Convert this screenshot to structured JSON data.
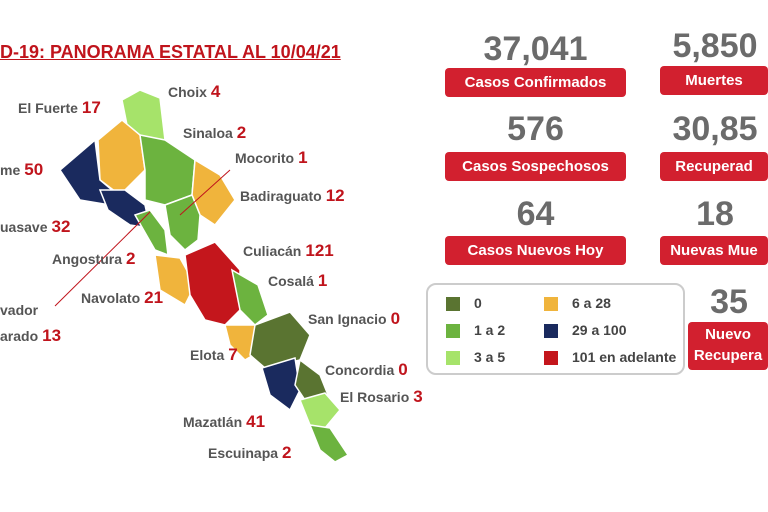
{
  "header": {
    "title": "D-19: PANORAMA ESTATAL AL 10/04/21"
  },
  "stats": [
    {
      "value": "37,041",
      "label": "Casos Confirmados"
    },
    {
      "value": "5,850",
      "label": "Muertes"
    },
    {
      "value": "576",
      "label": "Casos Sospechosos"
    },
    {
      "value": "30,85",
      "label": "Recuperad"
    },
    {
      "value": "64",
      "label": "Casos Nuevos Hoy"
    },
    {
      "value": "18",
      "label": "Nuevas Mue"
    },
    {
      "value": "35",
      "label": "Nuevo",
      "label2": "Recupera"
    }
  ],
  "legend": [
    {
      "label": "0",
      "color": "#5a7431"
    },
    {
      "label": "1 a 2",
      "color": "#6cb33f"
    },
    {
      "label": "3 a 5",
      "color": "#a6e36a"
    },
    {
      "label": "6 a 28",
      "color": "#f0b43c"
    },
    {
      "label": "29 a 100",
      "color": "#1a2a5e"
    },
    {
      "label": "101 en adelante",
      "color": "#c4161c"
    }
  ],
  "municipalities": [
    {
      "name": "Choix",
      "count": 4
    },
    {
      "name": "El Fuerte",
      "count": 17
    },
    {
      "name": "Sinaloa",
      "count": 2
    },
    {
      "name": "Mocorito",
      "count": 1
    },
    {
      "name": "me",
      "count": 50
    },
    {
      "name": "Badiraguato",
      "count": 12
    },
    {
      "name": "uasave",
      "count": 32
    },
    {
      "name": "Culiacán",
      "count": 121
    },
    {
      "name": "Angostura",
      "count": 2
    },
    {
      "name": "Cosalá",
      "count": 1
    },
    {
      "name_top": "vador",
      "name": "arado",
      "count": 13
    },
    {
      "name": "Navolato",
      "count": 21
    },
    {
      "name": "San Ignacio",
      "count": 0
    },
    {
      "name": "Elota",
      "count": 7
    },
    {
      "name": "Concordia",
      "count": 0
    },
    {
      "name": "El Rosario",
      "count": 3
    },
    {
      "name": "Mazatlán",
      "count": 41
    },
    {
      "name": "Escuinapa",
      "count": 2
    }
  ]
}
